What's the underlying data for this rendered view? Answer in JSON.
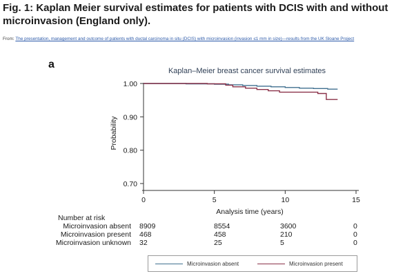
{
  "figure": {
    "title": "Fig. 1: Kaplan Meier survival estimates for patients with DCIS with and without microinvasion (England only).",
    "from_prefix": "From:",
    "from_link": "The presentation, management and outcome of patients with ductal carcinoma in situ (DCIS) with microinvasion (invasion ≤1 mm in size)—results from the UK Sloane Project",
    "panel_label": "a"
  },
  "chart_data": {
    "type": "line",
    "title": "Kaplan–Meier breast cancer survival estimates",
    "xlabel": "Analysis time (years)",
    "ylabel": "Probability",
    "xlim": [
      0,
      15
    ],
    "ylim": [
      0.7,
      1.0
    ],
    "xticks": [
      0,
      5,
      10,
      15
    ],
    "yticks": [
      0.7,
      0.8,
      0.9,
      1.0
    ],
    "ytick_labels": [
      "0.70",
      "0.80",
      "0.90",
      "1.00"
    ],
    "grid": false,
    "series": [
      {
        "name": "Microinvasion absent",
        "color": "#3f6f8f",
        "step": true,
        "x": [
          0,
          3,
          5,
          6,
          7,
          8,
          9,
          10,
          11,
          12,
          13,
          13.7
        ],
        "y": [
          1.0,
          0.999,
          0.998,
          0.996,
          0.994,
          0.992,
          0.99,
          0.988,
          0.986,
          0.985,
          0.983,
          0.983
        ]
      },
      {
        "name": "Microinvasion present",
        "color": "#8a3048",
        "step": true,
        "x": [
          0,
          4.5,
          5.8,
          6.3,
          7.2,
          8.0,
          8.8,
          9.6,
          12.3,
          12.9,
          13.7
        ],
        "y": [
          1.0,
          0.999,
          0.995,
          0.99,
          0.986,
          0.982,
          0.978,
          0.974,
          0.97,
          0.952,
          0.952
        ]
      }
    ],
    "risk_table": {
      "header": "Number at risk",
      "times": [
        0,
        5,
        10,
        15
      ],
      "rows": [
        {
          "label": "Microinvasion absent",
          "values": [
            "8909",
            "8554",
            "3600",
            "0"
          ]
        },
        {
          "label": "Microinvasion present",
          "values": [
            "468",
            "458",
            "210",
            "0"
          ]
        },
        {
          "label": "Microinvasion unknown",
          "values": [
            "32",
            "25",
            "5",
            "0"
          ]
        }
      ]
    },
    "legend": [
      "Microinvasion absent",
      "Microinvasion present"
    ],
    "legend_position": "bottom"
  }
}
